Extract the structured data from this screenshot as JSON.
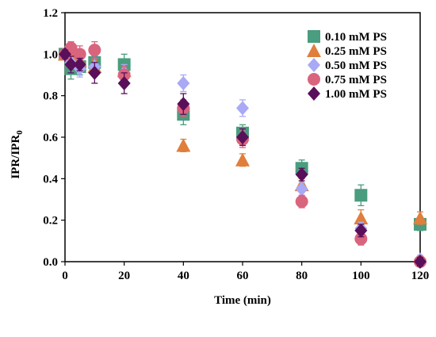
{
  "chart_data": {
    "type": "scatter",
    "xlabel": "Time (min)",
    "ylabel": "IPR/IPR",
    "ylabel_subscript": "0",
    "xlim": [
      0,
      120
    ],
    "ylim": [
      0,
      1.2
    ],
    "x_ticks": [
      "0",
      "20",
      "40",
      "60",
      "80",
      "100",
      "120"
    ],
    "y_ticks": [
      "0.0",
      "0.2",
      "0.4",
      "0.6",
      "0.8",
      "1.0",
      "1.2"
    ],
    "grid": false,
    "legend_position": "top-right",
    "series": [
      {
        "name": "0.10 mM PS",
        "marker": "square",
        "color": "#4a9d7e",
        "points": [
          {
            "x": 0,
            "y": 1.0,
            "err": 0.02
          },
          {
            "x": 2,
            "y": 0.93,
            "err": 0.05
          },
          {
            "x": 5,
            "y": 0.94,
            "err": 0.04
          },
          {
            "x": 10,
            "y": 0.96,
            "err": 0.03
          },
          {
            "x": 20,
            "y": 0.95,
            "err": 0.05
          },
          {
            "x": 40,
            "y": 0.71,
            "err": 0.05
          },
          {
            "x": 60,
            "y": 0.62,
            "err": 0.04
          },
          {
            "x": 80,
            "y": 0.45,
            "err": 0.04
          },
          {
            "x": 100,
            "y": 0.32,
            "err": 0.05
          },
          {
            "x": 120,
            "y": 0.18,
            "err": 0.03
          }
        ]
      },
      {
        "name": "0.25 mM PS",
        "marker": "triangle",
        "color": "#e07e3c",
        "points": [
          {
            "x": 0,
            "y": 1.0,
            "err": 0.02
          },
          {
            "x": 2,
            "y": 1.0,
            "err": 0.04
          },
          {
            "x": 5,
            "y": 0.97,
            "err": 0.03
          },
          {
            "x": 10,
            "y": 0.94,
            "err": 0.03
          },
          {
            "x": 20,
            "y": 0.92,
            "err": 0.03
          },
          {
            "x": 40,
            "y": 0.56,
            "err": 0.03
          },
          {
            "x": 60,
            "y": 0.49,
            "err": 0.03
          },
          {
            "x": 80,
            "y": 0.37,
            "err": 0.03
          },
          {
            "x": 100,
            "y": 0.21,
            "err": 0.04
          },
          {
            "x": 120,
            "y": 0.21,
            "err": 0.03
          }
        ]
      },
      {
        "name": "0.50 mM PS",
        "marker": "diamond",
        "color": "#a9a9f5",
        "points": [
          {
            "x": 0,
            "y": 1.0,
            "err": 0.02
          },
          {
            "x": 2,
            "y": 0.96,
            "err": 0.05
          },
          {
            "x": 5,
            "y": 0.93,
            "err": 0.04
          },
          {
            "x": 10,
            "y": 0.94,
            "err": 0.04
          },
          {
            "x": 20,
            "y": 0.91,
            "err": 0.04
          },
          {
            "x": 40,
            "y": 0.86,
            "err": 0.04
          },
          {
            "x": 60,
            "y": 0.74,
            "err": 0.04
          },
          {
            "x": 80,
            "y": 0.35,
            "err": 0.03
          },
          {
            "x": 100,
            "y": 0.16,
            "err": 0.03
          },
          {
            "x": 120,
            "y": 0.01,
            "err": 0.02
          }
        ]
      },
      {
        "name": "0.75 mM PS",
        "marker": "circle",
        "color": "#d9647e",
        "points": [
          {
            "x": 0,
            "y": 1.0,
            "err": 0.02
          },
          {
            "x": 2,
            "y": 1.03,
            "err": 0.03
          },
          {
            "x": 5,
            "y": 1.0,
            "err": 0.04
          },
          {
            "x": 10,
            "y": 1.02,
            "err": 0.04
          },
          {
            "x": 20,
            "y": 0.9,
            "err": 0.04
          },
          {
            "x": 40,
            "y": 0.74,
            "err": 0.04
          },
          {
            "x": 60,
            "y": 0.59,
            "err": 0.04
          },
          {
            "x": 80,
            "y": 0.29,
            "err": 0.03
          },
          {
            "x": 100,
            "y": 0.11,
            "err": 0.03
          },
          {
            "x": 120,
            "y": 0.0,
            "err": 0.02
          }
        ]
      },
      {
        "name": "1.00 mM PS",
        "marker": "diamond",
        "color": "#5a0f5a",
        "points": [
          {
            "x": 0,
            "y": 1.0,
            "err": 0.02
          },
          {
            "x": 2,
            "y": 0.95,
            "err": 0.04
          },
          {
            "x": 5,
            "y": 0.95,
            "err": 0.03
          },
          {
            "x": 10,
            "y": 0.91,
            "err": 0.05
          },
          {
            "x": 20,
            "y": 0.86,
            "err": 0.05
          },
          {
            "x": 40,
            "y": 0.76,
            "err": 0.05
          },
          {
            "x": 60,
            "y": 0.6,
            "err": 0.04
          },
          {
            "x": 80,
            "y": 0.42,
            "err": 0.03
          },
          {
            "x": 100,
            "y": 0.15,
            "err": 0.03
          },
          {
            "x": 120,
            "y": 0.0,
            "err": 0.02
          }
        ]
      }
    ]
  }
}
